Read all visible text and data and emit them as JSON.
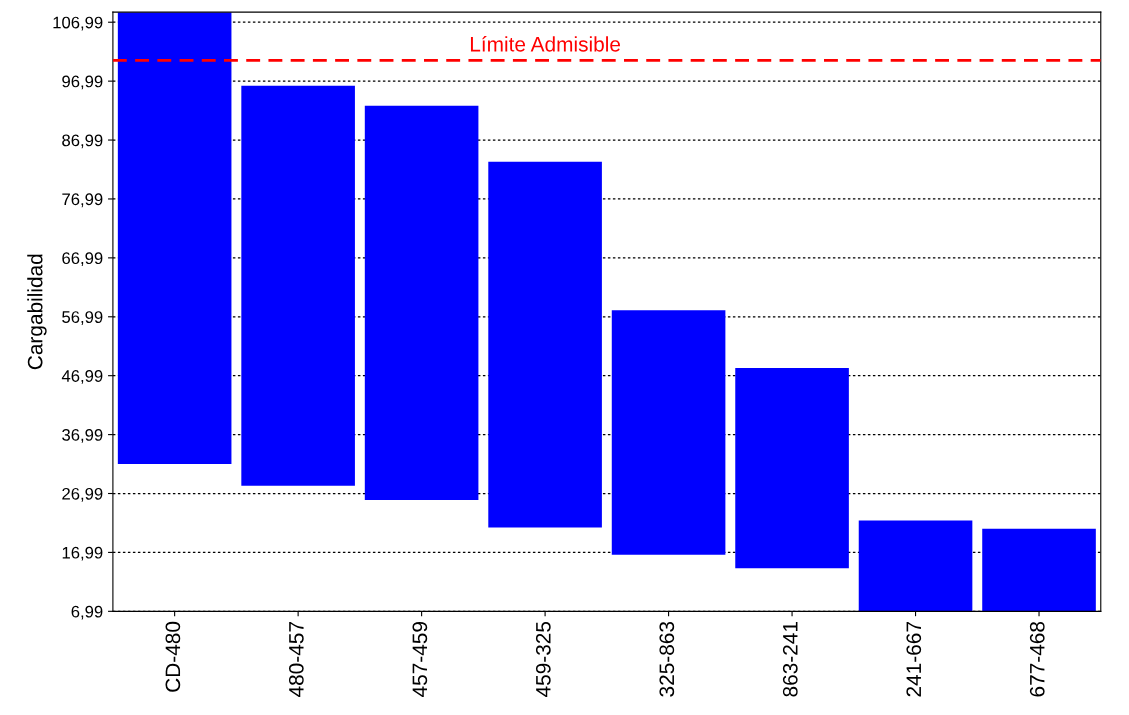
{
  "chart_data": {
    "type": "bar",
    "ylabel": "Cargabilidad",
    "categories": [
      "CD-480",
      "480-457",
      "457-459",
      "459-325",
      "325-863",
      "863-241",
      "241-667",
      "677-468"
    ],
    "base": [
      32.0,
      28.3,
      25.9,
      21.2,
      16.6,
      14.3,
      6.99,
      6.99
    ],
    "values": [
      76.7,
      67.9,
      66.9,
      62.1,
      41.5,
      34.0,
      15.4,
      14.0
    ],
    "color": "#0000ff",
    "ylim": [
      6.99,
      108.7
    ],
    "yticks": [
      {
        "value": 6.99,
        "label": "6,99"
      },
      {
        "value": 16.99,
        "label": "16,99"
      },
      {
        "value": 26.99,
        "label": "26,99"
      },
      {
        "value": 36.99,
        "label": "36,99"
      },
      {
        "value": 46.99,
        "label": "46,99"
      },
      {
        "value": 56.99,
        "label": "56,99"
      },
      {
        "value": 66.99,
        "label": "66,99"
      },
      {
        "value": 76.99,
        "label": "76,99"
      },
      {
        "value": 86.99,
        "label": "86,99"
      },
      {
        "value": 96.99,
        "label": "96,99"
      },
      {
        "value": 106.99,
        "label": "106,99"
      }
    ],
    "grid": "y",
    "ref_lines": [
      {
        "axis": "y",
        "value": 100.5,
        "label": "Límite Admisible",
        "color": "#ff0000",
        "line_style": "dashed"
      }
    ]
  }
}
